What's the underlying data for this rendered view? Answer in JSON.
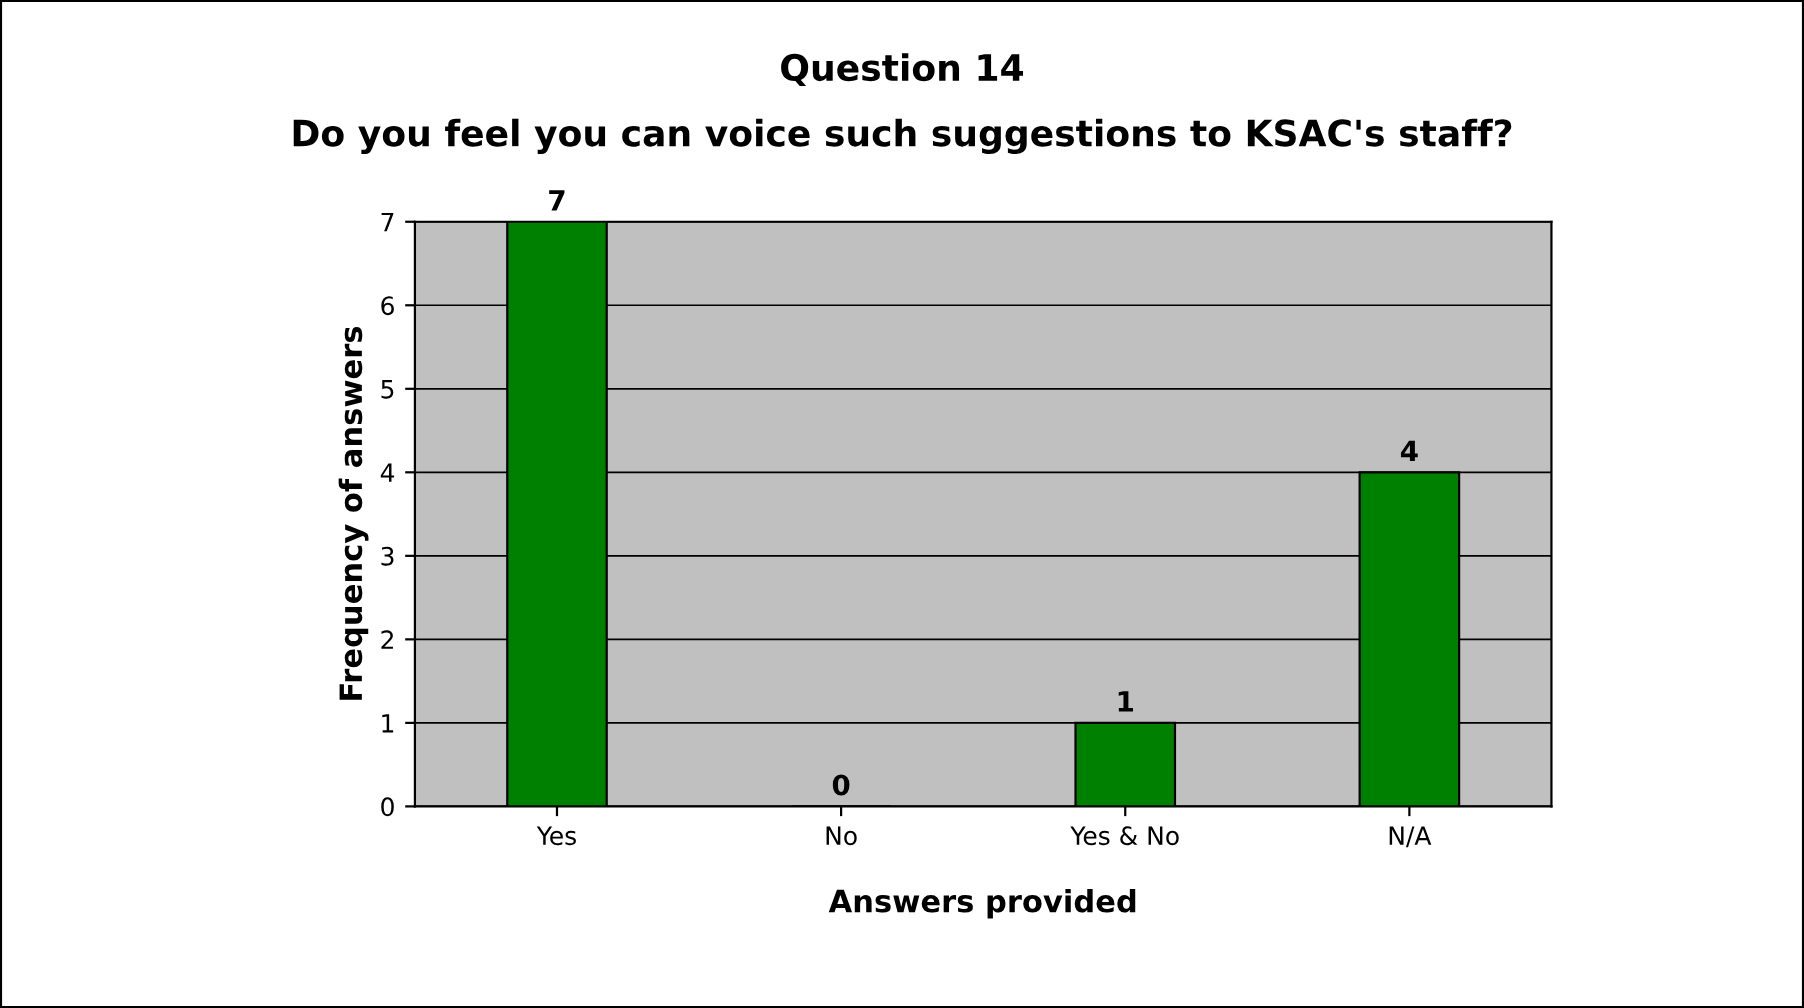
{
  "chart_data": {
    "type": "bar",
    "title": "Question 14",
    "subtitle": "Do you feel you can voice such suggestions to KSAC's staff?",
    "xlabel": "Answers provided",
    "ylabel": "Frequency of answers",
    "categories": [
      "Yes",
      "No",
      "Yes & No",
      "N/A"
    ],
    "values": [
      7,
      0,
      1,
      4
    ],
    "color": "#008000",
    "ylim": [
      0,
      7
    ],
    "yticks": [
      0,
      1,
      2,
      3,
      4,
      5,
      6,
      7
    ],
    "grid": "y",
    "data_labels": true
  }
}
